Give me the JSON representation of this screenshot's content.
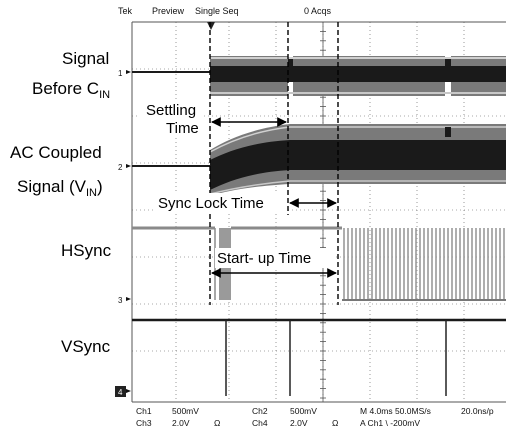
{
  "header": {
    "brand": "Tek",
    "mode": "Preview",
    "acquisition": "Single Seq",
    "acqs": "0 Acqs"
  },
  "channel_markers": [
    "1",
    "2",
    "3",
    "4"
  ],
  "trace_labels": {
    "signal_before_line1": "Signal",
    "signal_before_line2": "Before C",
    "signal_before_sub": "IN",
    "ac_coupled_line1": "AC Coupled",
    "ac_coupled_line2_pre": "Signal (V",
    "ac_coupled_sub": "IN",
    "ac_coupled_line2_post": ")",
    "hsync": "HSync",
    "vsync": "VSync"
  },
  "annotations": {
    "settling_line1": "Settling",
    "settling_line2": "Time",
    "sync_lock": "Sync Lock Time",
    "startup": "Start- up Time"
  },
  "footer": {
    "ch1_label": "Ch1",
    "ch1_scale": "500mV",
    "ch2_label": "Ch2",
    "ch2_scale": "500mV",
    "ch3_label": "Ch3",
    "ch3_scale": "2.0V",
    "ch3_coupling": "Ω",
    "ch4_label": "Ch4",
    "ch4_scale": "2.0V",
    "ch4_coupling": "Ω",
    "timebase": "M 4.0ms 50.0MS/s",
    "sample_interval": "20.0ns/p",
    "trigger": "A  Ch1  \\  -200mV"
  },
  "colors": {
    "grid": "#555555",
    "trace_dark": "#1a1a1a",
    "trace_mid": "#555555",
    "trace_light": "#9a9a9a"
  }
}
